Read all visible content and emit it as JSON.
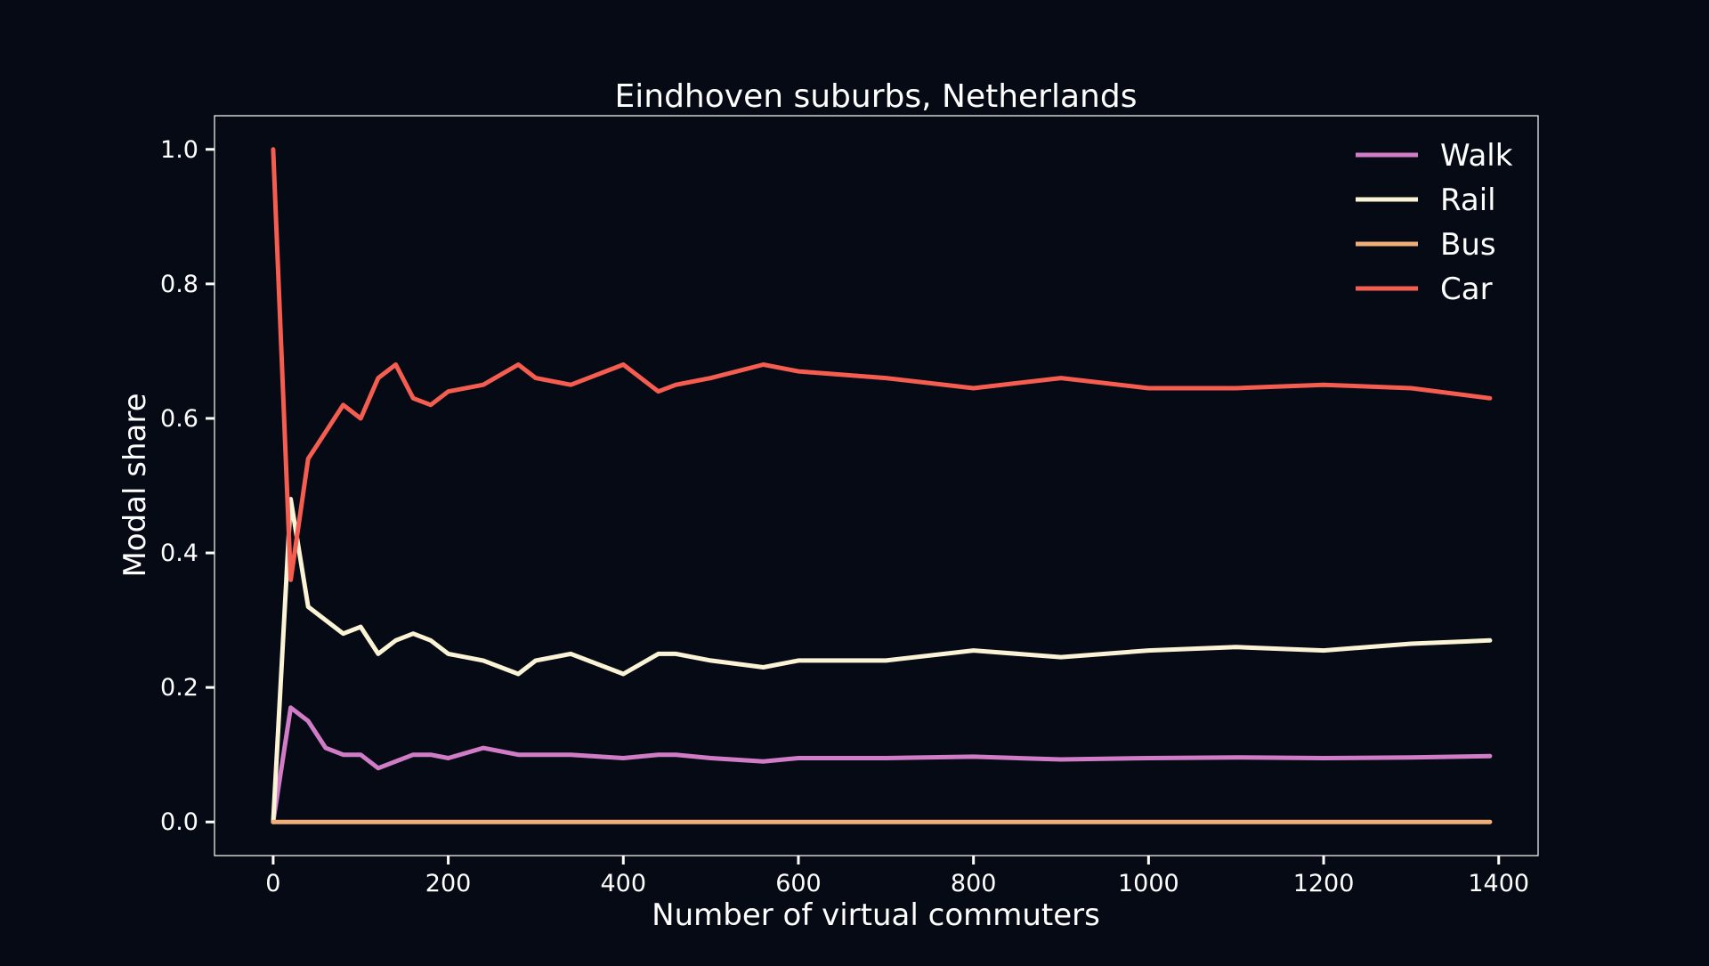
{
  "chart_data": {
    "type": "line",
    "title": "Eindhoven suburbs, Netherlands",
    "xlabel": "Number of virtual commuters",
    "ylabel": "Modal share",
    "xlim": [
      -67,
      1445
    ],
    "ylim": [
      -0.05,
      1.05
    ],
    "xticks": [
      0,
      200,
      400,
      600,
      800,
      1000,
      1200,
      1400
    ],
    "yticks": [
      0.0,
      0.2,
      0.4,
      0.6,
      0.8,
      1.0
    ],
    "xtick_labels": [
      "0",
      "200",
      "400",
      "600",
      "800",
      "1000",
      "1200",
      "1400"
    ],
    "ytick_labels": [
      "0.0",
      "0.2",
      "0.4",
      "0.6",
      "0.8",
      "1.0"
    ],
    "grid": false,
    "legend_position": "top-right",
    "x": [
      0,
      20,
      40,
      60,
      80,
      100,
      120,
      140,
      160,
      180,
      200,
      240,
      280,
      300,
      340,
      400,
      440,
      460,
      500,
      560,
      600,
      700,
      800,
      900,
      1000,
      1100,
      1200,
      1300,
      1390
    ],
    "series": [
      {
        "name": "Walk",
        "color": "#d17cc6",
        "values": [
          0.0,
          0.17,
          0.15,
          0.11,
          0.1,
          0.1,
          0.08,
          0.09,
          0.1,
          0.1,
          0.095,
          0.11,
          0.1,
          0.1,
          0.1,
          0.095,
          0.1,
          0.1,
          0.095,
          0.09,
          0.095,
          0.095,
          0.097,
          0.093,
          0.095,
          0.096,
          0.095,
          0.096,
          0.098
        ]
      },
      {
        "name": "Rail",
        "color": "#faf3d6",
        "values": [
          0.0,
          0.48,
          0.32,
          0.3,
          0.28,
          0.29,
          0.25,
          0.27,
          0.28,
          0.27,
          0.25,
          0.24,
          0.22,
          0.24,
          0.25,
          0.22,
          0.25,
          0.25,
          0.24,
          0.23,
          0.24,
          0.24,
          0.255,
          0.245,
          0.255,
          0.26,
          0.255,
          0.265,
          0.27
        ]
      },
      {
        "name": "Bus",
        "color": "#f0ae78",
        "values": [
          0.0,
          0.0,
          0.0,
          0.0,
          0.0,
          0.0,
          0.0,
          0.0,
          0.0,
          0.0,
          0.0,
          0.0,
          0.0,
          0.0,
          0.0,
          0.0,
          0.0,
          0.0,
          0.0,
          0.0,
          0.0,
          0.0,
          0.0,
          0.0,
          0.0,
          0.0,
          0.0,
          0.0,
          0.0
        ]
      },
      {
        "name": "Car",
        "color": "#f55d50",
        "values": [
          1.0,
          0.36,
          0.54,
          0.58,
          0.62,
          0.6,
          0.66,
          0.68,
          0.63,
          0.62,
          0.64,
          0.65,
          0.68,
          0.66,
          0.65,
          0.68,
          0.64,
          0.65,
          0.66,
          0.68,
          0.67,
          0.66,
          0.645,
          0.66,
          0.645,
          0.645,
          0.65,
          0.645,
          0.63
        ]
      }
    ]
  }
}
